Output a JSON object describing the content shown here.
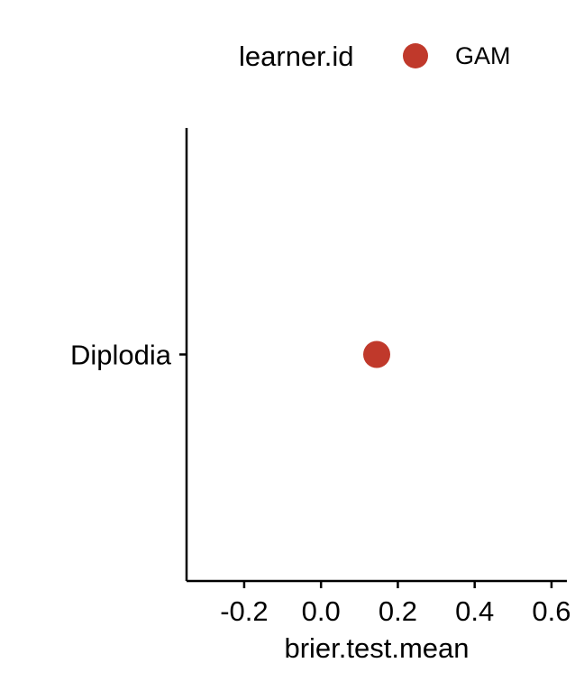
{
  "chart_data": {
    "type": "scatter",
    "xlabel": "brier.test.mean",
    "ylabel": "",
    "xlim": [
      -0.35,
      0.64
    ],
    "x_ticks": [
      -0.2,
      0.0,
      0.2,
      0.4,
      0.6
    ],
    "x_tick_labels": [
      "-0.2",
      "0.0",
      "0.2",
      "0.4",
      "0.6"
    ],
    "categories": [
      "Diplodia"
    ],
    "series": [
      {
        "name": "GAM",
        "color": "#c0392b",
        "points": [
          {
            "category": "Diplodia",
            "x": 0.145
          }
        ]
      }
    ],
    "legend": {
      "title": "learner.id",
      "placement": "top",
      "entries": [
        "GAM"
      ]
    },
    "grid": false
  }
}
